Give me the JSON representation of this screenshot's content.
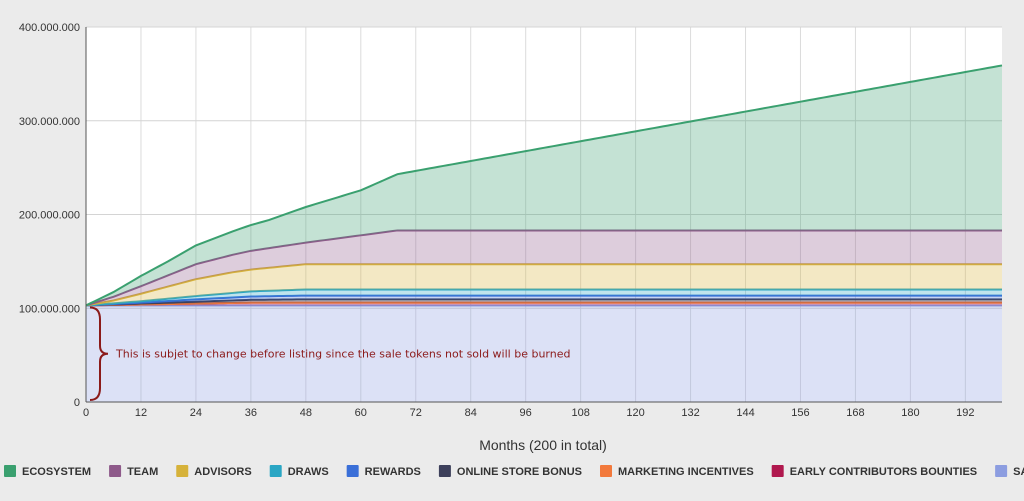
{
  "chart_data": {
    "type": "area",
    "stacked": true,
    "xlabel": "Months (200 in total)",
    "ylabel": "",
    "xlim": [
      0,
      200
    ],
    "ylim": [
      0,
      400000000
    ],
    "x_ticks": [
      "0",
      "12",
      "24",
      "36",
      "48",
      "60",
      "72",
      "84",
      "96",
      "108",
      "120",
      "132",
      "144",
      "156",
      "168",
      "180",
      "192"
    ],
    "y_ticks": [
      "0",
      "100.000.000",
      "200.000.000",
      "300.000.000",
      "400.000.000"
    ],
    "grid": true,
    "legend_position": "bottom",
    "annotation": "This is subjet to change before listing since the sale tokens not sold will be burned",
    "series": [
      {
        "name": "SALE",
        "color": "#8c9de0",
        "points": [
          [
            0,
            103000000
          ],
          [
            200,
            103000000
          ]
        ]
      },
      {
        "name": "EARLY CONTRIBUTORS BOUNTIES",
        "color": "#b0184e",
        "points": [
          [
            0,
            0
          ],
          [
            6,
            500000
          ],
          [
            12,
            1000000
          ],
          [
            24,
            2000000
          ],
          [
            36,
            3000000
          ],
          [
            48,
            3000000
          ],
          [
            200,
            3000000
          ]
        ]
      },
      {
        "name": "MARKETING INCENTIVES",
        "color": "#f2793c",
        "points": [
          [
            0,
            0
          ],
          [
            200,
            0
          ]
        ]
      },
      {
        "name": "ONLINE STORE BONUS",
        "color": "#3d405b",
        "points": [
          [
            0,
            0
          ],
          [
            12,
            1000000
          ],
          [
            24,
            2000000
          ],
          [
            36,
            3000000
          ],
          [
            48,
            3500000
          ],
          [
            200,
            3500000
          ]
        ]
      },
      {
        "name": "REWARDS",
        "color": "#3a6fd8",
        "points": [
          [
            0,
            0
          ],
          [
            12,
            1000000
          ],
          [
            24,
            2500000
          ],
          [
            36,
            3500000
          ],
          [
            48,
            4000000
          ],
          [
            200,
            4000000
          ]
        ]
      },
      {
        "name": "DRAWS",
        "color": "#2aa6c4",
        "points": [
          [
            0,
            0
          ],
          [
            12,
            1500000
          ],
          [
            24,
            3500000
          ],
          [
            36,
            5500000
          ],
          [
            48,
            6500000
          ],
          [
            200,
            6500000
          ]
        ]
      },
      {
        "name": "ADVISORS",
        "color": "#d6b23a",
        "points": [
          [
            0,
            0
          ],
          [
            6,
            3000000
          ],
          [
            12,
            8000000
          ],
          [
            18,
            13000000
          ],
          [
            24,
            18000000
          ],
          [
            32,
            22000000
          ],
          [
            48,
            27000000
          ],
          [
            200,
            27000000
          ]
        ]
      },
      {
        "name": "TEAM",
        "color": "#8e5a8a",
        "points": [
          [
            0,
            0
          ],
          [
            6,
            4000000
          ],
          [
            12,
            8000000
          ],
          [
            18,
            12000000
          ],
          [
            24,
            16000000
          ],
          [
            36,
            20000000
          ],
          [
            48,
            23000000
          ],
          [
            68,
            36000000
          ],
          [
            200,
            36000000
          ]
        ]
      },
      {
        "name": "ECOSYSTEM",
        "color": "#3aa06f",
        "points": [
          [
            0,
            0
          ],
          [
            6,
            5000000
          ],
          [
            12,
            11000000
          ],
          [
            18,
            15000000
          ],
          [
            24,
            20000000
          ],
          [
            32,
            25000000
          ],
          [
            40,
            30000000
          ],
          [
            48,
            38000000
          ],
          [
            60,
            48000000
          ],
          [
            68,
            60000000
          ],
          [
            200,
            176000000
          ]
        ]
      }
    ],
    "legend": [
      {
        "name": "ECOSYSTEM",
        "color": "#3aa06f"
      },
      {
        "name": "TEAM",
        "color": "#8e5a8a"
      },
      {
        "name": "ADVISORS",
        "color": "#d6b23a"
      },
      {
        "name": "DRAWS",
        "color": "#2aa6c4"
      },
      {
        "name": "REWARDS",
        "color": "#3a6fd8"
      },
      {
        "name": "ONLINE STORE BONUS",
        "color": "#3d405b"
      },
      {
        "name": "MARKETING INCENTIVES",
        "color": "#f2793c"
      },
      {
        "name": "EARLY CONTRIBUTORS BOUNTIES",
        "color": "#b0184e"
      },
      {
        "name": "SALE",
        "color": "#8c9de0"
      }
    ]
  }
}
